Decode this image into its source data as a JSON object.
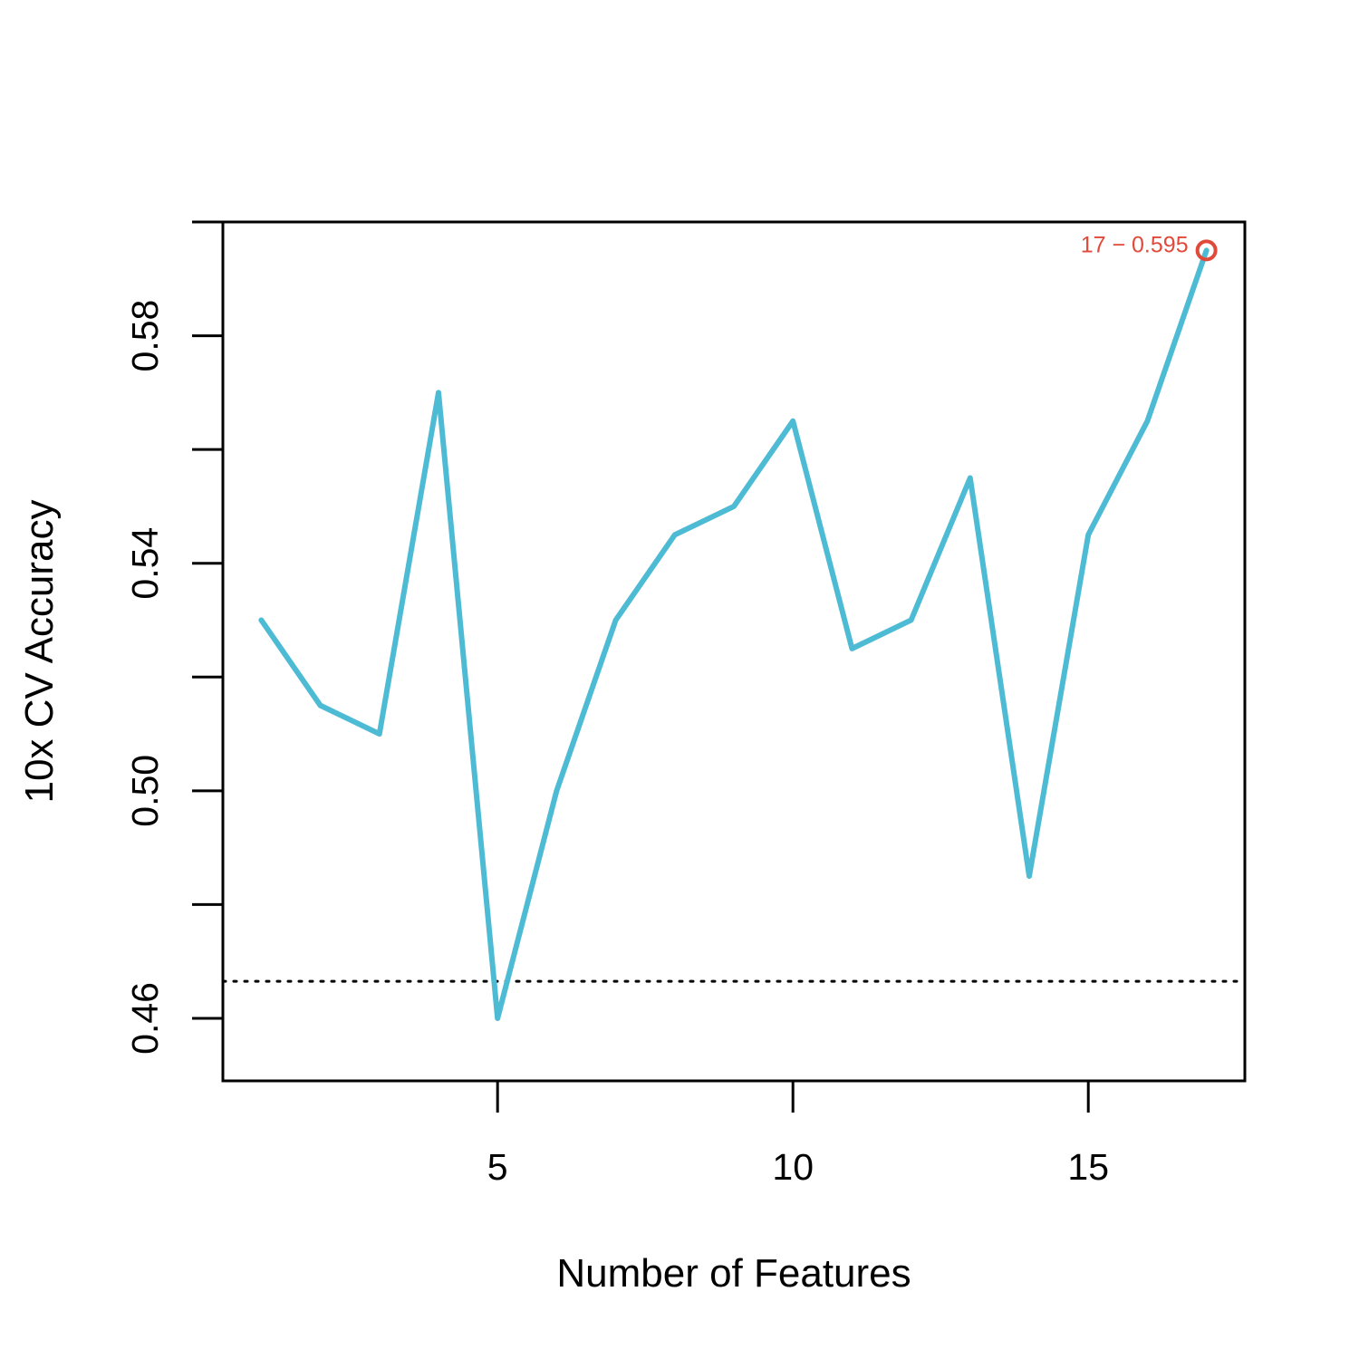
{
  "chart_data": {
    "type": "line",
    "title": "",
    "xlabel": "Number of Features",
    "ylabel": "10x CV Accuracy",
    "x": [
      1,
      2,
      3,
      4,
      5,
      6,
      7,
      8,
      9,
      10,
      11,
      12,
      13,
      14,
      15,
      16,
      17
    ],
    "series": [
      {
        "values": [
          0.53,
          0.515,
          0.51,
          0.57,
          0.46,
          0.5,
          0.53,
          0.545,
          0.55,
          0.565,
          0.525,
          0.53,
          0.555,
          0.485,
          0.545,
          0.565,
          0.595
        ],
        "color": "#4EBBD5"
      }
    ],
    "xlim": [
      0.35,
      17.65
    ],
    "ylim": [
      0.449,
      0.6
    ],
    "xticks": [
      5,
      10,
      15
    ],
    "xtick_labels": [
      "5",
      "10",
      "15"
    ],
    "yticks": [
      0.46,
      0.48,
      0.5,
      0.52,
      0.54,
      0.56,
      0.58,
      0.6
    ],
    "ytick_labels": [
      "0.46",
      "",
      "0.50",
      "",
      "0.54",
      "",
      "0.58",
      ""
    ],
    "reference_line": {
      "y": 0.4665,
      "style": "dotted",
      "color": "#000000"
    },
    "highlight": {
      "x": 17,
      "y": 0.595,
      "label": "17 − 0.595",
      "color": "#E04A3A"
    },
    "grid": false,
    "legend": "none"
  }
}
